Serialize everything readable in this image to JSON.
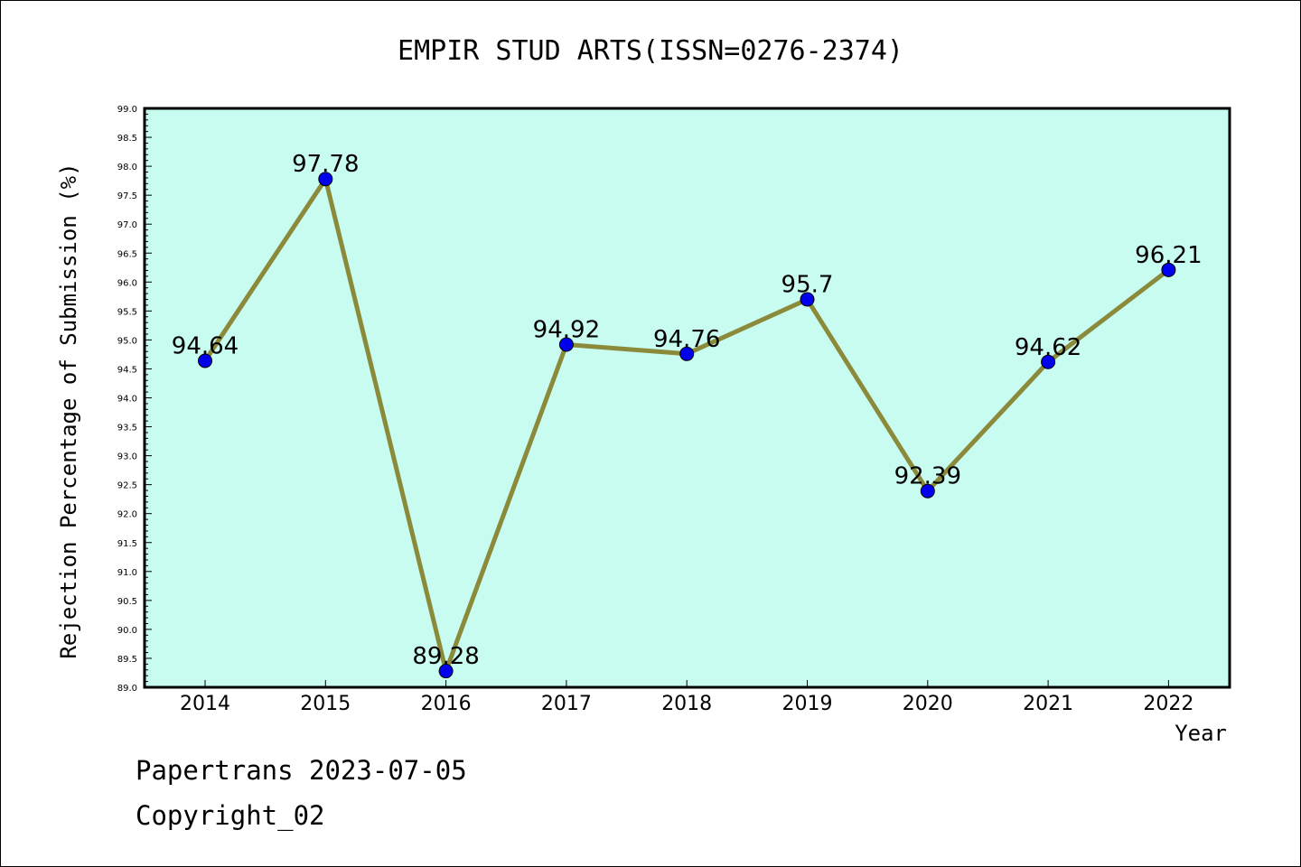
{
  "chart_data": {
    "type": "line",
    "title": "EMPIR STUD ARTS(ISSN=0276-2374)",
    "xlabel": "Year",
    "ylabel": "Rejection Percentage of Submission (%)",
    "categories": [
      "2014",
      "2015",
      "2016",
      "2017",
      "2018",
      "2019",
      "2020",
      "2021",
      "2022"
    ],
    "series": [
      {
        "values": [
          94.64,
          97.78,
          89.28,
          94.92,
          94.76,
          95.7,
          92.39,
          94.62,
          96.21
        ],
        "labels": [
          "94.64",
          "97.78",
          "89.28",
          "94.92",
          "94.76",
          "95.7",
          "92.39",
          "94.62",
          "96.21"
        ]
      }
    ],
    "ylim": [
      89.0,
      99.0
    ],
    "ytick_step": 0.5,
    "grid": false,
    "colors": {
      "plot_background": "#c8fcf0",
      "line": "#8b8a3a",
      "marker": "#0000ee"
    }
  },
  "footer": {
    "line1": "Papertrans 2023-07-05",
    "line2": "Copyright_02"
  }
}
